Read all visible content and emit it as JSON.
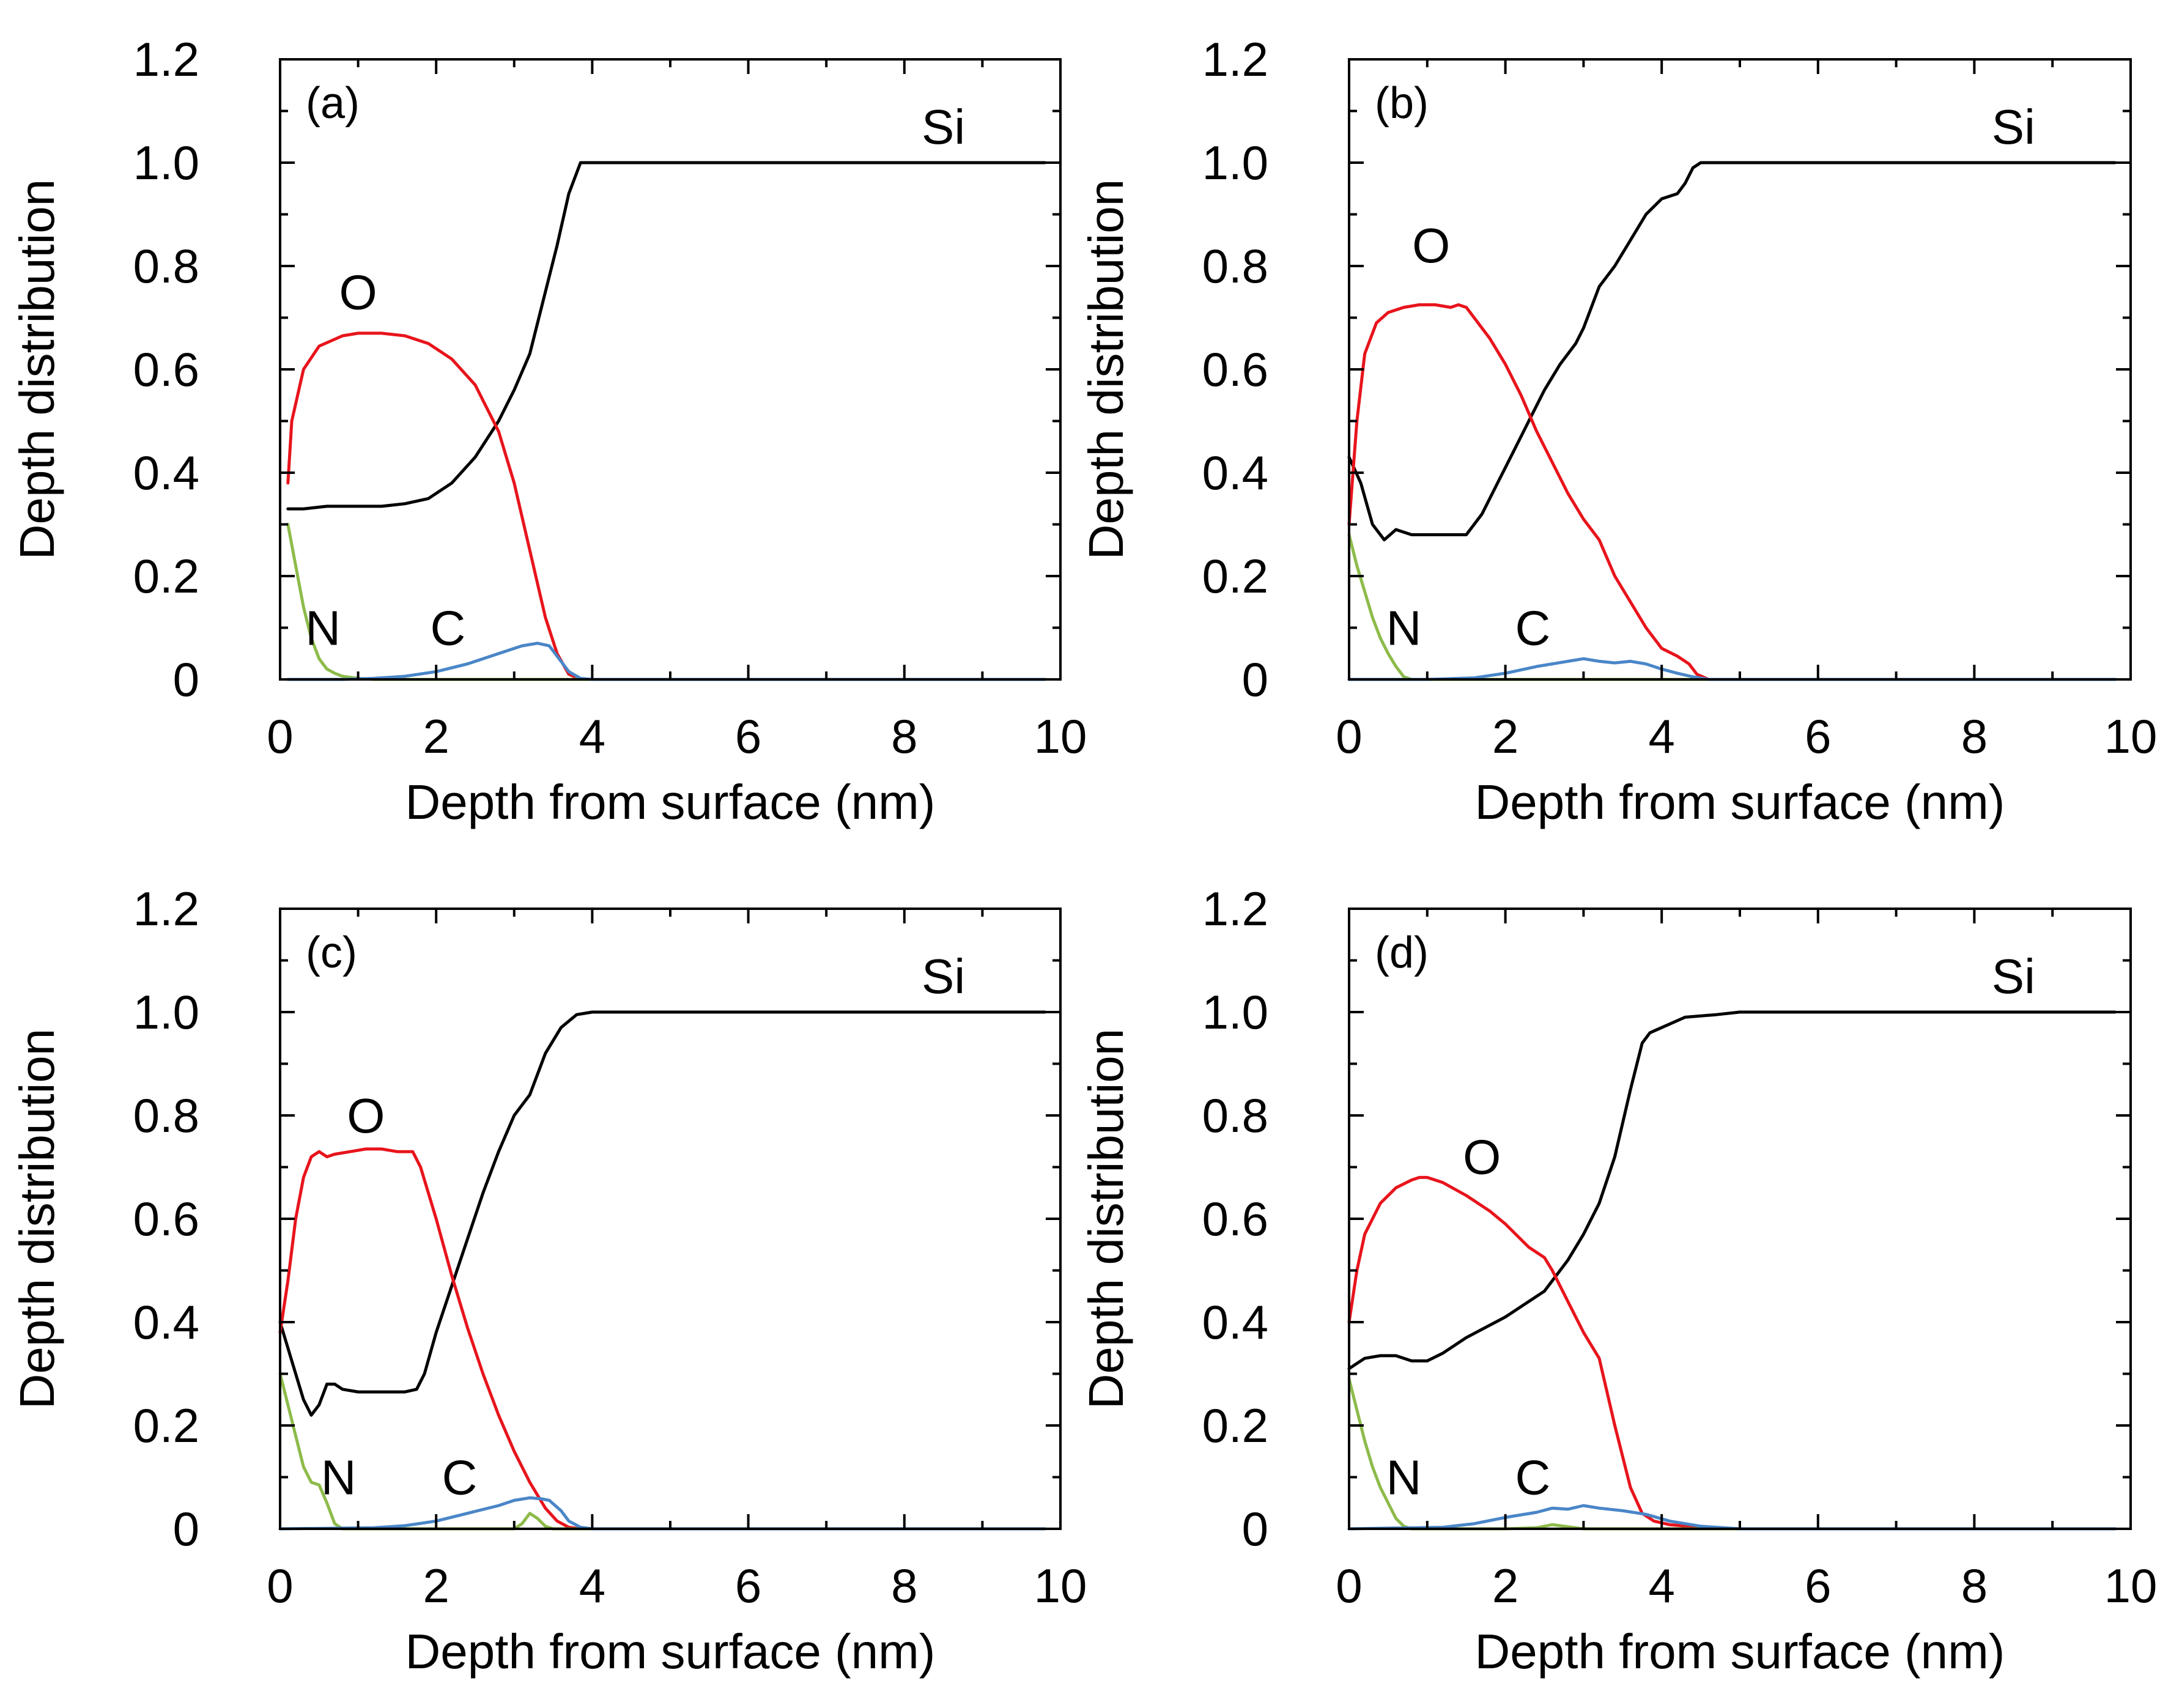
{
  "colors": {
    "Si": "#000000",
    "O": "#e8141c",
    "N": "#8dbb4a",
    "C": "#4a86c8"
  },
  "chart_data": [
    {
      "type": "line",
      "panel": "(a)",
      "xlabel": "Depth from surface (nm)",
      "ylabel": "Depth distribution",
      "xlim": [
        0,
        10
      ],
      "ylim": [
        0,
        1.2
      ],
      "xticks": [
        0,
        2,
        4,
        6,
        8,
        10
      ],
      "yticks": [
        0,
        0.2,
        0.4,
        0.6,
        0.8,
        1.0,
        1.2
      ],
      "ytick_labels": [
        "0",
        "0.2",
        "0.4",
        "0.6",
        "0.8",
        "1.0",
        "1.2"
      ],
      "series": [
        {
          "name": "Si",
          "x": [
            0.1,
            0.3,
            0.6,
            1.0,
            1.3,
            1.6,
            1.9,
            2.2,
            2.5,
            2.8,
            3.0,
            3.2,
            3.4,
            3.55,
            3.7,
            3.85,
            4.0,
            6.0,
            8.0,
            9.8
          ],
          "y": [
            0.33,
            0.33,
            0.335,
            0.335,
            0.335,
            0.34,
            0.35,
            0.38,
            0.43,
            0.5,
            0.56,
            0.63,
            0.75,
            0.84,
            0.94,
            1.0,
            1.0,
            1.0,
            1.0,
            1.0
          ]
        },
        {
          "name": "O",
          "x": [
            0.1,
            0.15,
            0.3,
            0.5,
            0.8,
            1.0,
            1.3,
            1.6,
            1.9,
            2.2,
            2.5,
            2.8,
            3.0,
            3.2,
            3.4,
            3.55,
            3.7,
            3.85,
            4.0,
            6.0,
            8.0,
            9.8
          ],
          "y": [
            0.38,
            0.5,
            0.6,
            0.645,
            0.665,
            0.67,
            0.67,
            0.665,
            0.65,
            0.62,
            0.57,
            0.48,
            0.38,
            0.25,
            0.12,
            0.05,
            0.01,
            0.0,
            0.0,
            0.0,
            0.0,
            0.0
          ]
        },
        {
          "name": "N",
          "x": [
            0.1,
            0.2,
            0.3,
            0.4,
            0.5,
            0.6,
            0.7,
            0.8,
            1.0,
            1.2,
            2.0,
            4.0,
            6.0,
            8.0,
            9.8
          ],
          "y": [
            0.3,
            0.22,
            0.14,
            0.08,
            0.04,
            0.02,
            0.012,
            0.006,
            0.002,
            0.0,
            0.0,
            0.0,
            0.0,
            0.0,
            0.0
          ]
        },
        {
          "name": "C",
          "x": [
            0.1,
            0.8,
            1.2,
            1.6,
            2.0,
            2.4,
            2.8,
            3.1,
            3.3,
            3.45,
            3.55,
            3.7,
            3.85,
            4.0,
            6.0,
            8.0,
            9.8
          ],
          "y": [
            0.0,
            0.0,
            0.002,
            0.006,
            0.015,
            0.03,
            0.05,
            0.065,
            0.07,
            0.065,
            0.045,
            0.015,
            0.002,
            0.0,
            0.0,
            0.0,
            0.0
          ]
        }
      ],
      "annotations": [
        {
          "text": "Si",
          "x": 8.5,
          "y": 1.07
        },
        {
          "text": "O",
          "x": 1.0,
          "y": 0.75
        },
        {
          "text": "N",
          "x": 0.55,
          "y": 0.1
        },
        {
          "text": "C",
          "x": 2.15,
          "y": 0.1
        }
      ]
    },
    {
      "type": "line",
      "panel": "(b)",
      "xlabel": "Depth from surface (nm)",
      "ylabel": "Depth distribution",
      "xlim": [
        0,
        10
      ],
      "ylim": [
        0,
        1.2
      ],
      "xticks": [
        0,
        2,
        4,
        6,
        8,
        10
      ],
      "yticks": [
        0,
        0.2,
        0.4,
        0.6,
        0.8,
        1.0,
        1.2
      ],
      "ytick_labels": [
        "0",
        "0.2",
        "0.4",
        "0.6",
        "0.8",
        "1.0",
        "1.2"
      ],
      "series": [
        {
          "name": "Si",
          "x": [
            0.0,
            0.15,
            0.3,
            0.45,
            0.6,
            0.8,
            1.0,
            1.3,
            1.5,
            1.7,
            1.9,
            2.1,
            2.3,
            2.5,
            2.7,
            2.9,
            3.0,
            3.2,
            3.4,
            3.6,
            3.8,
            4.0,
            4.2,
            4.3,
            4.4,
            4.5,
            4.6,
            6.0,
            8.0,
            9.8
          ],
          "y": [
            0.43,
            0.38,
            0.3,
            0.27,
            0.29,
            0.28,
            0.28,
            0.28,
            0.28,
            0.32,
            0.38,
            0.44,
            0.5,
            0.56,
            0.61,
            0.65,
            0.68,
            0.76,
            0.8,
            0.85,
            0.9,
            0.93,
            0.94,
            0.96,
            0.99,
            1.0,
            1.0,
            1.0,
            1.0,
            1.0
          ]
        },
        {
          "name": "O",
          "x": [
            0.0,
            0.1,
            0.2,
            0.35,
            0.5,
            0.7,
            0.9,
            1.1,
            1.3,
            1.4,
            1.5,
            1.6,
            1.8,
            2.0,
            2.2,
            2.4,
            2.6,
            2.8,
            3.0,
            3.2,
            3.4,
            3.6,
            3.8,
            4.0,
            4.2,
            4.35,
            4.45,
            4.6,
            6.0,
            8.0,
            9.8
          ],
          "y": [
            0.3,
            0.5,
            0.63,
            0.69,
            0.71,
            0.72,
            0.725,
            0.725,
            0.72,
            0.725,
            0.72,
            0.7,
            0.66,
            0.61,
            0.55,
            0.48,
            0.42,
            0.36,
            0.31,
            0.27,
            0.2,
            0.15,
            0.1,
            0.06,
            0.045,
            0.03,
            0.01,
            0.0,
            0.0,
            0.0,
            0.0
          ]
        },
        {
          "name": "N",
          "x": [
            0.0,
            0.1,
            0.2,
            0.3,
            0.4,
            0.5,
            0.6,
            0.7,
            0.8,
            1.0,
            2.0,
            4.0,
            6.0,
            8.0,
            9.8
          ],
          "y": [
            0.28,
            0.22,
            0.17,
            0.12,
            0.08,
            0.05,
            0.025,
            0.005,
            0.0,
            0.0,
            0.0,
            0.0,
            0.0,
            0.0,
            0.0
          ]
        },
        {
          "name": "C",
          "x": [
            0.0,
            1.0,
            1.6,
            2.0,
            2.4,
            2.8,
            3.0,
            3.2,
            3.4,
            3.6,
            3.8,
            4.0,
            4.2,
            4.4,
            4.6,
            6.0,
            8.0,
            9.8
          ],
          "y": [
            0.0,
            0.0,
            0.003,
            0.012,
            0.025,
            0.035,
            0.04,
            0.035,
            0.032,
            0.035,
            0.03,
            0.02,
            0.012,
            0.005,
            0.0,
            0.0,
            0.0,
            0.0
          ]
        }
      ],
      "annotations": [
        {
          "text": "Si",
          "x": 8.5,
          "y": 1.07
        },
        {
          "text": "O",
          "x": 1.05,
          "y": 0.84
        },
        {
          "text": "N",
          "x": 0.7,
          "y": 0.1
        },
        {
          "text": "C",
          "x": 2.35,
          "y": 0.1
        }
      ]
    },
    {
      "type": "line",
      "panel": "(c)",
      "xlabel": "Depth from surface (nm)",
      "ylabel": "Depth distribution",
      "xlim": [
        0,
        10
      ],
      "ylim": [
        0,
        1.2
      ],
      "xticks": [
        0,
        2,
        4,
        6,
        8,
        10
      ],
      "yticks": [
        0,
        0.2,
        0.4,
        0.6,
        0.8,
        1.0,
        1.2
      ],
      "ytick_labels": [
        "0",
        "0.2",
        "0.4",
        "0.6",
        "0.8",
        "1.0",
        "1.2"
      ],
      "series": [
        {
          "name": "Si",
          "x": [
            0.0,
            0.1,
            0.2,
            0.3,
            0.4,
            0.5,
            0.6,
            0.7,
            0.8,
            1.0,
            1.3,
            1.6,
            1.75,
            1.85,
            2.0,
            2.2,
            2.4,
            2.6,
            2.8,
            3.0,
            3.2,
            3.4,
            3.6,
            3.8,
            4.0,
            6.0,
            8.0,
            9.8
          ],
          "y": [
            0.4,
            0.35,
            0.3,
            0.25,
            0.22,
            0.24,
            0.28,
            0.28,
            0.27,
            0.265,
            0.265,
            0.265,
            0.27,
            0.3,
            0.38,
            0.47,
            0.56,
            0.65,
            0.73,
            0.8,
            0.84,
            0.92,
            0.97,
            0.995,
            1.0,
            1.0,
            1.0,
            1.0
          ]
        },
        {
          "name": "O",
          "x": [
            0.0,
            0.1,
            0.2,
            0.3,
            0.4,
            0.5,
            0.6,
            0.7,
            0.9,
            1.1,
            1.3,
            1.5,
            1.7,
            1.8,
            2.0,
            2.2,
            2.4,
            2.6,
            2.8,
            3.0,
            3.2,
            3.4,
            3.55,
            3.7,
            3.85,
            4.0,
            6.0,
            8.0,
            9.8
          ],
          "y": [
            0.38,
            0.48,
            0.6,
            0.68,
            0.72,
            0.73,
            0.72,
            0.725,
            0.73,
            0.735,
            0.735,
            0.73,
            0.73,
            0.7,
            0.6,
            0.49,
            0.39,
            0.3,
            0.22,
            0.15,
            0.09,
            0.04,
            0.015,
            0.003,
            0.0,
            0.0,
            0.0,
            0.0,
            0.0
          ]
        },
        {
          "name": "N",
          "x": [
            0.0,
            0.1,
            0.2,
            0.3,
            0.4,
            0.5,
            0.6,
            0.7,
            0.8,
            1.0,
            2.0,
            3.0,
            3.1,
            3.2,
            3.3,
            3.4,
            3.5,
            4.0,
            6.0,
            8.0,
            9.8
          ],
          "y": [
            0.3,
            0.24,
            0.18,
            0.12,
            0.09,
            0.085,
            0.05,
            0.01,
            0.0,
            0.0,
            0.0,
            0.0,
            0.01,
            0.03,
            0.02,
            0.005,
            0.0,
            0.0,
            0.0,
            0.0,
            0.0
          ]
        },
        {
          "name": "C",
          "x": [
            0.0,
            1.2,
            1.6,
            2.0,
            2.4,
            2.8,
            3.0,
            3.2,
            3.35,
            3.45,
            3.6,
            3.7,
            3.85,
            4.0,
            6.0,
            8.0,
            9.8
          ],
          "y": [
            0.0,
            0.002,
            0.006,
            0.015,
            0.03,
            0.045,
            0.055,
            0.06,
            0.058,
            0.055,
            0.035,
            0.015,
            0.003,
            0.0,
            0.0,
            0.0,
            0.0
          ]
        }
      ],
      "annotations": [
        {
          "text": "Si",
          "x": 8.5,
          "y": 1.07
        },
        {
          "text": "O",
          "x": 1.1,
          "y": 0.8
        },
        {
          "text": "N",
          "x": 0.75,
          "y": 0.1
        },
        {
          "text": "C",
          "x": 2.3,
          "y": 0.1
        }
      ]
    },
    {
      "type": "line",
      "panel": "(d)",
      "xlabel": "Depth from surface (nm)",
      "ylabel": "Depth distribution",
      "xlim": [
        0,
        10
      ],
      "ylim": [
        0,
        1.2
      ],
      "xticks": [
        0,
        2,
        4,
        6,
        8,
        10
      ],
      "yticks": [
        0,
        0.2,
        0.4,
        0.6,
        0.8,
        1.0,
        1.2
      ],
      "ytick_labels": [
        "0",
        "0.2",
        "0.4",
        "0.6",
        "0.8",
        "1.0",
        "1.2"
      ],
      "series": [
        {
          "name": "Si",
          "x": [
            0.0,
            0.1,
            0.2,
            0.4,
            0.6,
            0.8,
            1.0,
            1.2,
            1.5,
            2.0,
            2.5,
            2.8,
            3.0,
            3.2,
            3.4,
            3.6,
            3.75,
            3.85,
            4.0,
            4.3,
            4.7,
            5.0,
            6.0,
            8.0,
            9.8
          ],
          "y": [
            0.31,
            0.32,
            0.33,
            0.335,
            0.335,
            0.325,
            0.325,
            0.34,
            0.37,
            0.41,
            0.46,
            0.52,
            0.57,
            0.63,
            0.72,
            0.85,
            0.94,
            0.96,
            0.97,
            0.99,
            0.995,
            1.0,
            1.0,
            1.0,
            1.0
          ]
        },
        {
          "name": "O",
          "x": [
            0.0,
            0.1,
            0.2,
            0.4,
            0.6,
            0.8,
            0.9,
            1.0,
            1.2,
            1.5,
            1.8,
            2.0,
            2.3,
            2.5,
            2.6,
            2.8,
            3.0,
            3.2,
            3.4,
            3.6,
            3.75,
            3.9,
            4.1,
            4.5,
            5.0,
            6.0,
            8.0,
            9.8
          ],
          "y": [
            0.4,
            0.5,
            0.57,
            0.63,
            0.66,
            0.675,
            0.68,
            0.68,
            0.67,
            0.645,
            0.615,
            0.59,
            0.545,
            0.525,
            0.5,
            0.44,
            0.38,
            0.33,
            0.2,
            0.08,
            0.03,
            0.015,
            0.008,
            0.003,
            0.0,
            0.0,
            0.0,
            0.0
          ]
        },
        {
          "name": "N",
          "x": [
            0.0,
            0.1,
            0.2,
            0.3,
            0.4,
            0.5,
            0.6,
            0.7,
            0.8,
            1.0,
            2.0,
            2.4,
            2.6,
            2.8,
            3.0,
            4.0,
            6.0,
            8.0,
            9.8
          ],
          "y": [
            0.29,
            0.23,
            0.17,
            0.12,
            0.08,
            0.05,
            0.02,
            0.005,
            0.0,
            0.0,
            0.0,
            0.002,
            0.008,
            0.004,
            0.0,
            0.0,
            0.0,
            0.0,
            0.0
          ]
        },
        {
          "name": "C",
          "x": [
            0.0,
            1.2,
            1.6,
            2.0,
            2.4,
            2.6,
            2.8,
            3.0,
            3.2,
            3.5,
            3.8,
            4.1,
            4.5,
            5.0,
            6.0,
            8.0,
            9.8
          ],
          "y": [
            0.0,
            0.003,
            0.01,
            0.022,
            0.032,
            0.04,
            0.038,
            0.045,
            0.04,
            0.035,
            0.028,
            0.015,
            0.005,
            0.0,
            0.0,
            0.0,
            0.0
          ]
        }
      ],
      "annotations": [
        {
          "text": "Si",
          "x": 8.5,
          "y": 1.07
        },
        {
          "text": "O",
          "x": 1.7,
          "y": 0.72
        },
        {
          "text": "N",
          "x": 0.7,
          "y": 0.1
        },
        {
          "text": "C",
          "x": 2.35,
          "y": 0.1
        }
      ]
    }
  ]
}
